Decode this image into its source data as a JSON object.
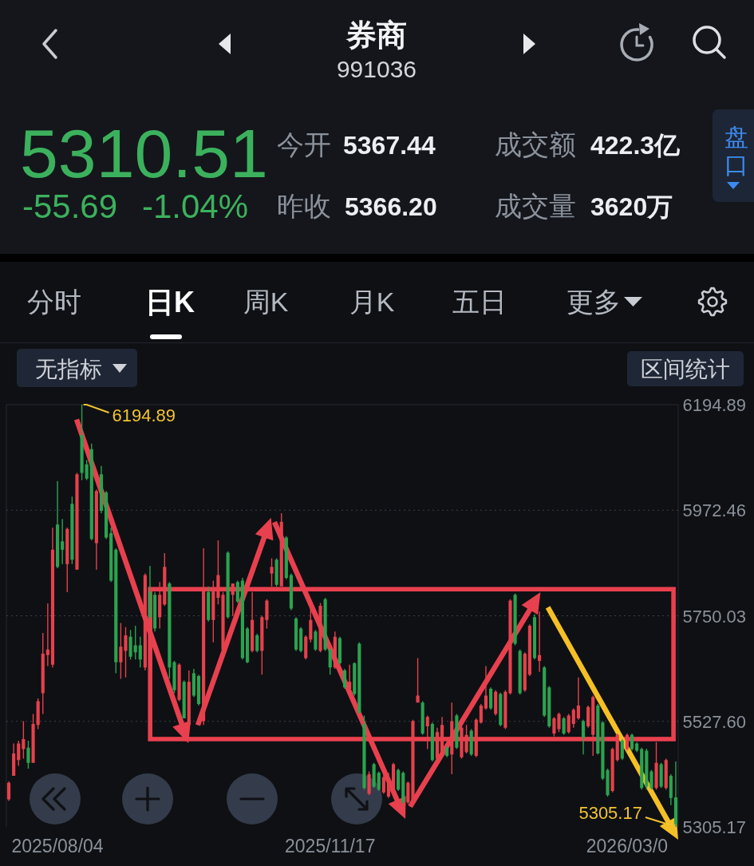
{
  "chart_data": {
    "type": "candlestick",
    "title": "券商",
    "subtitle": "991036",
    "categories": [
      null,
      null,
      null,
      null,
      null,
      null,
      null,
      null,
      null,
      null,
      "2025/08/04",
      null,
      null,
      null,
      null,
      null,
      null,
      null,
      null,
      null,
      null,
      null,
      null,
      null,
      null,
      null,
      null,
      null,
      null,
      null,
      null,
      null,
      null,
      null,
      null,
      null,
      null,
      null,
      null,
      null,
      null,
      null,
      null,
      null,
      null,
      null,
      null,
      null,
      null,
      null,
      null,
      null,
      null,
      null,
      null,
      null,
      null,
      null,
      null,
      null,
      null,
      null,
      null,
      null,
      null,
      null,
      "2025/11/17",
      null,
      null,
      null,
      null,
      null,
      null,
      null,
      null,
      null,
      null,
      null,
      null,
      null,
      null,
      null,
      null,
      null,
      null,
      null,
      null,
      null,
      null,
      null,
      null,
      null,
      null,
      null,
      null,
      null,
      null,
      null,
      null,
      null,
      null,
      null,
      null,
      null,
      null,
      null,
      null,
      null,
      null,
      null,
      null,
      null,
      null,
      null,
      null,
      null,
      null,
      null,
      null,
      null,
      null,
      null,
      null,
      null,
      null,
      null,
      null,
      "2026/03/0",
      null,
      null,
      null,
      null,
      null,
      null,
      null,
      null,
      null,
      null
    ],
    "ohlc": [
      [
        5363,
        5401,
        5360,
        5398
      ],
      [
        5413,
        5481,
        5413,
        5460
      ],
      [
        5446,
        5487,
        5434,
        5481
      ],
      [
        5469,
        5528,
        5449,
        5490
      ],
      [
        5472,
        5487,
        5428,
        5440
      ],
      [
        5440,
        5543,
        5440,
        5522
      ],
      [
        5520,
        5576,
        5511,
        5570
      ],
      [
        5587,
        5714,
        5543,
        5670
      ],
      [
        5667,
        5776,
        5644,
        5679
      ],
      [
        5647,
        5936,
        5641,
        5889
      ],
      [
        5942,
        6034,
        5850,
        5853
      ],
      [
        5907,
        5954,
        5859,
        5889
      ],
      [
        5859,
        5936,
        5800,
        5933
      ],
      [
        5986,
        6001,
        5859,
        5868
      ],
      [
        5847,
        6051,
        5847,
        6048
      ],
      [
        6131,
        6194.89,
        6036,
        6051
      ],
      [
        6069,
        6078,
        6036,
        6039
      ],
      [
        6101,
        6113,
        5909,
        5912
      ],
      [
        5903,
        6016,
        5847,
        6013
      ],
      [
        6048,
        6066,
        5966,
        5971
      ],
      [
        6010,
        6013,
        5912,
        5915
      ],
      [
        5924,
        5936,
        5821,
        5824
      ],
      [
        5889,
        5892,
        5629,
        5652
      ],
      [
        5652,
        5735,
        5617,
        5685
      ],
      [
        5676,
        5726,
        5620,
        5709
      ],
      [
        5706,
        5720,
        5658,
        5664
      ],
      [
        5688,
        5729,
        5658,
        5673
      ],
      [
        5688,
        5706,
        5641,
        5658
      ],
      [
        5641,
        5839,
        5635,
        5836
      ],
      [
        5800,
        5855,
        5741,
        5747
      ],
      [
        5794,
        5800,
        5717,
        5723
      ],
      [
        5747,
        5821,
        5723,
        5794
      ],
      [
        5774,
        5882,
        5771,
        5853
      ],
      [
        5818,
        5821,
        5617,
        5641
      ],
      [
        5652,
        5655,
        5587,
        5593
      ],
      [
        5573,
        5650,
        5570,
        5647
      ],
      [
        5611,
        5614,
        5534,
        5534
      ],
      [
        5520,
        5635,
        5517,
        5611
      ],
      [
        5629,
        5638,
        5579,
        5582
      ],
      [
        5623,
        5626,
        5561,
        5564
      ],
      [
        5528,
        5892,
        5520,
        5806
      ],
      [
        5800,
        5812,
        5738,
        5741
      ],
      [
        5741,
        5824,
        5694,
        5806
      ],
      [
        5788,
        5909,
        5774,
        5836
      ],
      [
        5679,
        5800,
        5676,
        5794
      ],
      [
        5883,
        5886,
        5744,
        5747
      ],
      [
        5794,
        5818,
        5750,
        5818
      ],
      [
        5821,
        5824,
        5777,
        5780
      ],
      [
        5824,
        5830,
        5658,
        5661
      ],
      [
        5723,
        5726,
        5650,
        5652
      ],
      [
        5676,
        5800,
        5673,
        5741
      ],
      [
        5709,
        5712,
        5673,
        5676
      ],
      [
        5676,
        5750,
        5626,
        5747
      ],
      [
        5741,
        5785,
        5723,
        5782
      ],
      [
        5839,
        5871,
        5812,
        5853
      ],
      [
        5868,
        5871,
        5812,
        5815
      ],
      [
        5812,
        5966,
        5812,
        5948
      ],
      [
        5915,
        5918,
        5827,
        5830
      ],
      [
        5836,
        5839,
        5762,
        5765
      ],
      [
        5744,
        5747,
        5676,
        5679
      ],
      [
        5723,
        5726,
        5673,
        5676
      ],
      [
        5661,
        5709,
        5658,
        5706
      ],
      [
        5700,
        5771,
        5694,
        5741
      ],
      [
        5717,
        5720,
        5676,
        5679
      ],
      [
        5676,
        5777,
        5673,
        5771
      ],
      [
        5785,
        5788,
        5676,
        5679
      ],
      [
        5679,
        5682,
        5626,
        5641
      ],
      [
        5641,
        5717,
        5638,
        5706
      ],
      [
        5703,
        5706,
        5647,
        5650
      ],
      [
        5635,
        5638,
        5596,
        5599
      ],
      [
        5596,
        5647,
        5593,
        5611
      ],
      [
        5650,
        5652,
        5582,
        5585
      ],
      [
        5691,
        5694,
        5543,
        5546
      ],
      [
        5522,
        5540,
        5384,
        5387
      ],
      [
        5375,
        5422,
        5372,
        5416
      ],
      [
        5437,
        5440,
        5387,
        5390
      ],
      [
        5419,
        5422,
        5381,
        5384
      ],
      [
        5378,
        5416,
        5375,
        5410
      ],
      [
        5369,
        5419,
        5366,
        5404
      ],
      [
        5381,
        5440,
        5375,
        5437
      ],
      [
        5425,
        5428,
        5381,
        5384
      ],
      [
        5419,
        5422,
        5354,
        5357
      ],
      [
        5357,
        5401,
        5354,
        5398
      ],
      [
        5354,
        5531,
        5351,
        5528
      ],
      [
        5567,
        5661,
        5567,
        5582
      ],
      [
        5567,
        5570,
        5499,
        5502
      ],
      [
        5517,
        5540,
        5469,
        5537
      ],
      [
        5522,
        5525,
        5443,
        5446
      ],
      [
        5449,
        5514,
        5446,
        5505
      ],
      [
        5455,
        5537,
        5452,
        5520
      ],
      [
        5472,
        5475,
        5452,
        5455
      ],
      [
        5458,
        5567,
        5416,
        5528
      ],
      [
        5540,
        5543,
        5469,
        5472
      ],
      [
        5452,
        5517,
        5449,
        5514
      ],
      [
        5463,
        5520,
        5460,
        5499
      ],
      [
        5508,
        5511,
        5455,
        5458
      ],
      [
        5455,
        5534,
        5452,
        5531
      ],
      [
        5525,
        5564,
        5523,
        5561
      ],
      [
        5555,
        5644,
        5552,
        5582
      ],
      [
        5596,
        5599,
        5552,
        5555
      ],
      [
        5543,
        5593,
        5540,
        5590
      ],
      [
        5585,
        5588,
        5517,
        5520
      ],
      [
        5514,
        5593,
        5511,
        5590
      ],
      [
        5587,
        5785,
        5584,
        5782
      ],
      [
        5794,
        5797,
        5688,
        5691
      ],
      [
        5676,
        5679,
        5584,
        5587
      ],
      [
        5593,
        5673,
        5590,
        5670
      ],
      [
        5626,
        5732,
        5623,
        5729
      ],
      [
        5747,
        5753,
        5658,
        5661
      ],
      [
        5655,
        5759,
        5632,
        5667
      ],
      [
        5641,
        5644,
        5537,
        5540
      ],
      [
        5599,
        5602,
        5514,
        5517
      ],
      [
        5502,
        5537,
        5496,
        5534
      ],
      [
        5511,
        5546,
        5505,
        5543
      ],
      [
        5534,
        5537,
        5499,
        5502
      ],
      [
        5505,
        5543,
        5502,
        5540
      ],
      [
        5522,
        5555,
        5514,
        5552
      ],
      [
        5534,
        5620,
        5531,
        5561
      ],
      [
        5528,
        5531,
        5458,
        5493
      ],
      [
        5517,
        5561,
        5514,
        5558
      ],
      [
        5499,
        5582,
        5455,
        5579
      ],
      [
        5561,
        5564,
        5458,
        5460
      ],
      [
        5525,
        5528,
        5404,
        5407
      ],
      [
        5425,
        5428,
        5369,
        5372
      ],
      [
        5381,
        5472,
        5378,
        5469
      ],
      [
        5446,
        5502,
        5443,
        5499
      ],
      [
        5487,
        5490,
        5446,
        5449
      ],
      [
        5469,
        5502,
        5466,
        5499
      ],
      [
        5499,
        5502,
        5466,
        5469
      ],
      [
        5481,
        5484,
        5463,
        5466
      ],
      [
        5469,
        5472,
        5384,
        5387
      ],
      [
        5466,
        5470,
        5384,
        5390
      ],
      [
        5422,
        5425,
        5384,
        5387
      ],
      [
        5387,
        5484,
        5384,
        5440
      ],
      [
        5437,
        5440,
        5387,
        5390
      ],
      [
        5387,
        5449,
        5384,
        5446
      ],
      [
        5413,
        5416,
        5351,
        5366.2
      ],
      [
        5367.44,
        5443,
        5305.17,
        5310.51
      ]
    ],
    "colors": [
      "#e5414c",
      "#e5414c",
      "#e5414c",
      "#e5414c",
      "#2ca24f",
      "#e5414c",
      "#e5414c",
      "#e5414c",
      "#e5414c",
      "#e5414c",
      "#2ca24f",
      "#2ca24f",
      "#e5414c",
      "#2ca24f",
      "#e5414c",
      "#2ca24f",
      "#2ca24f",
      "#2ca24f",
      "#e5414c",
      "#2ca24f",
      "#2ca24f",
      "#2ca24f",
      "#2ca24f",
      "#e5414c",
      "#e5414c",
      "#2ca24f",
      "#2ca24f",
      "#2ca24f",
      "#e5414c",
      "#2ca24f",
      "#2ca24f",
      "#e5414c",
      "#e5414c",
      "#2ca24f",
      "#2ca24f",
      "#e5414c",
      "#2ca24f",
      "#e5414c",
      "#2ca24f",
      "#2ca24f",
      "#e5414c",
      "#2ca24f",
      "#e5414c",
      "#e5414c",
      "#e5414c",
      "#2ca24f",
      "#e5414c",
      "#2ca24f",
      "#2ca24f",
      "#2ca24f",
      "#e5414c",
      "#2ca24f",
      "#e5414c",
      "#e5414c",
      "#e5414c",
      "#2ca24f",
      "#e5414c",
      "#2ca24f",
      "#2ca24f",
      "#2ca24f",
      "#2ca24f",
      "#e5414c",
      "#e5414c",
      "#2ca24f",
      "#e5414c",
      "#2ca24f",
      "#2ca24f",
      "#e5414c",
      "#2ca24f",
      "#2ca24f",
      "#e5414c",
      "#2ca24f",
      "#2ca24f",
      "#2ca24f",
      "#e5414c",
      "#2ca24f",
      "#2ca24f",
      "#e5414c",
      "#e5414c",
      "#e5414c",
      "#2ca24f",
      "#2ca24f",
      "#e5414c",
      "#e5414c",
      "#e5414c",
      "#2ca24f",
      "#e5414c",
      "#2ca24f",
      "#e5414c",
      "#e5414c",
      "#2ca24f",
      "#e5414c",
      "#2ca24f",
      "#e5414c",
      "#e5414c",
      "#2ca24f",
      "#e5414c",
      "#e5414c",
      "#e5414c",
      "#2ca24f",
      "#e5414c",
      "#2ca24f",
      "#e5414c",
      "#e5414c",
      "#2ca24f",
      "#2ca24f",
      "#e5414c",
      "#e5414c",
      "#2ca24f",
      "#e5414c",
      "#2ca24f",
      "#2ca24f",
      "#e5414c",
      "#e5414c",
      "#2ca24f",
      "#e5414c",
      "#e5414c",
      "#e5414c",
      "#2ca24f",
      "#e5414c",
      "#e5414c",
      "#2ca24f",
      "#2ca24f",
      "#2ca24f",
      "#e5414c",
      "#e5414c",
      "#2ca24f",
      "#e5414c",
      "#2ca24f",
      "#2ca24f",
      "#2ca24f",
      "#2ca24f",
      "#2ca24f",
      "#e5414c",
      "#2ca24f",
      "#e5414c",
      "#2ca24f",
      "#2ca24f"
    ],
    "ylim": [
      5305.17,
      6194.89
    ],
    "yticks": [
      5305.17,
      {
        "value": 5527.6,
        "label": "5527.60"
      },
      5750.03,
      5972.46,
      6194.89
    ],
    "grid": "y",
    "annotations": [
      "5310.51",
      "-55.69",
      "-1.04%",
      "今开",
      "5367.44",
      "昨收",
      "5366.20",
      "成交额",
      "422.3亿",
      "成交量",
      "3620万",
      "盘口",
      "分时",
      "日K",
      "周K",
      "月K",
      "五日",
      "更多",
      "无指标",
      "区间统计",
      "6194.89",
      "5305.17"
    ]
  }
}
